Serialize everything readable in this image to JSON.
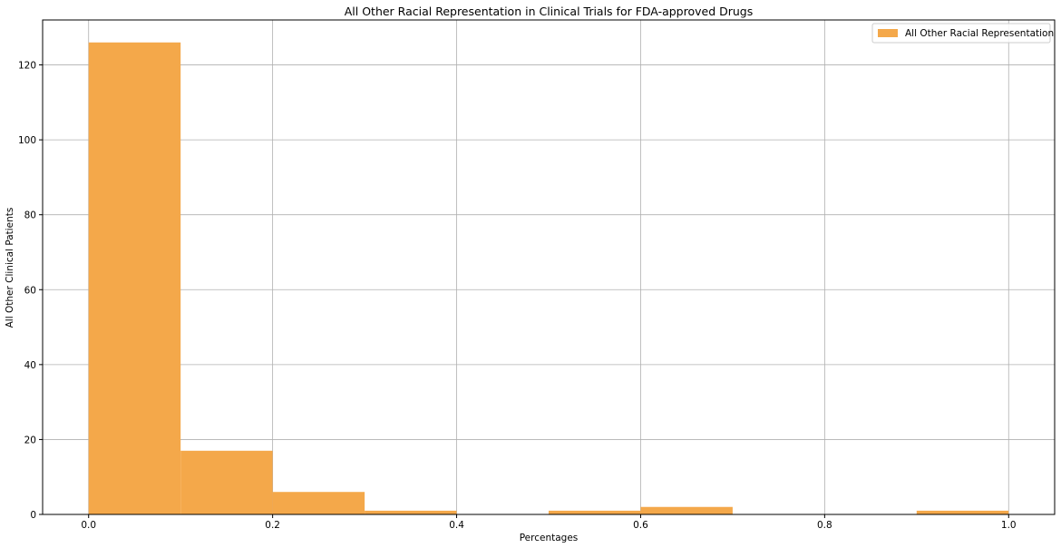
{
  "chart_data": {
    "type": "bar",
    "histogram": true,
    "title": "All Other Racial Representation in Clinical Trials for FDA-approved Drugs",
    "xlabel": "Percentages",
    "ylabel": "All Other Clinical Patients",
    "bin_edges": [
      0.0,
      0.1,
      0.2,
      0.3,
      0.4,
      0.5,
      0.6,
      0.7,
      0.8,
      0.9,
      1.0
    ],
    "series": [
      {
        "name": "All Other Racial Representation",
        "color": "#f4a84a",
        "values": [
          126,
          17,
          6,
          1,
          0,
          1,
          2,
          0,
          0,
          1
        ]
      }
    ],
    "xlim": [
      -0.05,
      1.05
    ],
    "ylim": [
      0,
      132
    ],
    "x_ticks": [
      0.0,
      0.2,
      0.4,
      0.6,
      0.8,
      1.0
    ],
    "x_tick_labels": [
      "0.0",
      "0.2",
      "0.4",
      "0.6",
      "0.8",
      "1.0"
    ],
    "y_ticks": [
      0,
      20,
      40,
      60,
      80,
      100,
      120
    ],
    "y_tick_labels": [
      "0",
      "20",
      "40",
      "60",
      "80",
      "100",
      "120"
    ],
    "grid": true,
    "legend_position": "top-right"
  }
}
